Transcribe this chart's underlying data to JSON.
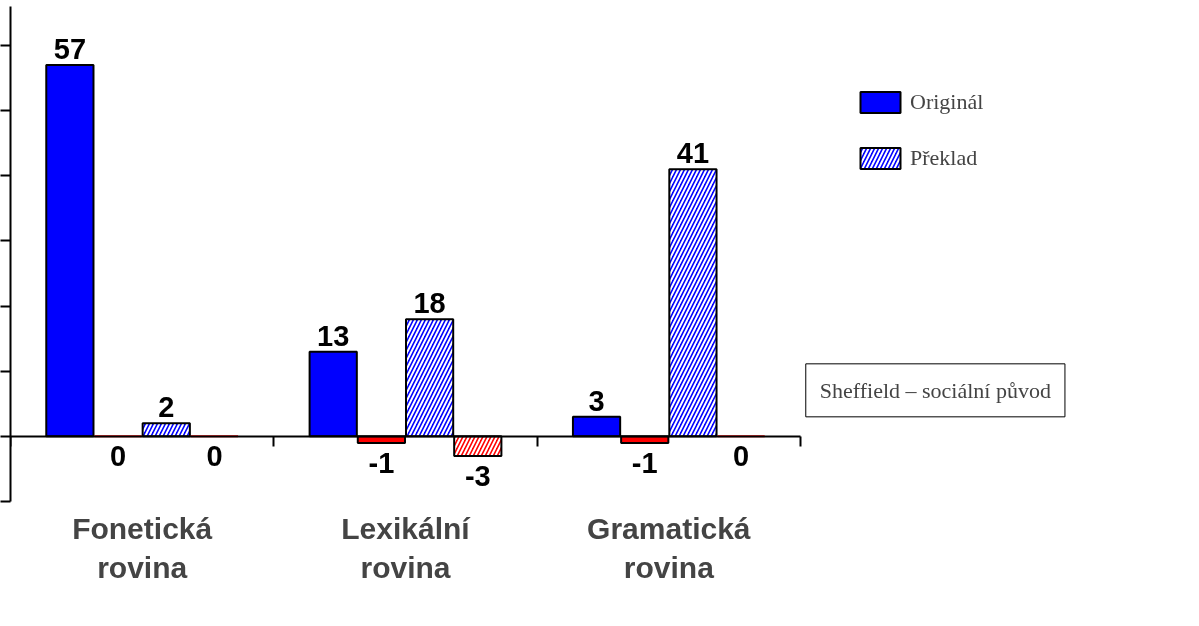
{
  "chart_data": {
    "type": "bar",
    "categories": [
      "Fonetická\nrovina",
      "Lexikální\nrovina",
      "Gramatická\nrovina"
    ],
    "series": [
      {
        "name": "Originál",
        "color": "#0000ff",
        "values": [
          57,
          13,
          3
        ]
      },
      {
        "color": "#ff0000",
        "values": [
          0,
          -1,
          -1
        ]
      },
      {
        "name": "Překlad",
        "color": "#0000ff",
        "values": [
          2,
          18,
          41
        ]
      },
      {
        "color": "#ff0000",
        "values": [
          0,
          -3,
          0
        ]
      }
    ],
    "ylim": [
      -10,
      66
    ],
    "yticks": [
      {
        "value": -10,
        "label": null
      },
      {
        "value": 0,
        "label": null
      },
      {
        "value": 10,
        "label": null
      },
      {
        "value": 20,
        "label": null
      },
      {
        "value": 30,
        "label": null
      },
      {
        "value": 40,
        "label": null
      },
      {
        "value": 50,
        "label": null
      },
      {
        "value": 60,
        "label": null
      }
    ],
    "tick_labels": "x",
    "data_labels": true,
    "legend": "right",
    "grid": false,
    "annotations": [
      "Sheffield – sociální původ"
    ]
  }
}
